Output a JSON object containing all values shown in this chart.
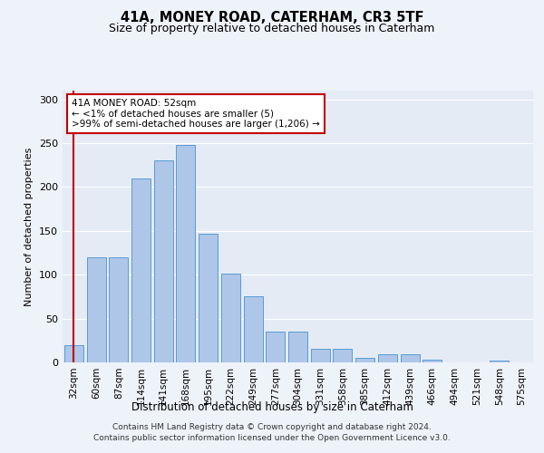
{
  "title1": "41A, MONEY ROAD, CATERHAM, CR3 5TF",
  "title2": "Size of property relative to detached houses in Caterham",
  "xlabel": "Distribution of detached houses by size in Caterham",
  "ylabel": "Number of detached properties",
  "bar_color": "#aec6e8",
  "bar_edge_color": "#5b9bd5",
  "highlight_color": "#c00000",
  "categories": [
    "32sqm",
    "60sqm",
    "87sqm",
    "114sqm",
    "141sqm",
    "168sqm",
    "195sqm",
    "222sqm",
    "249sqm",
    "277sqm",
    "304sqm",
    "331sqm",
    "358sqm",
    "385sqm",
    "412sqm",
    "439sqm",
    "466sqm",
    "494sqm",
    "521sqm",
    "548sqm",
    "575sqm"
  ],
  "values": [
    20,
    120,
    120,
    210,
    230,
    248,
    147,
    101,
    75,
    35,
    35,
    15,
    15,
    5,
    9,
    9,
    3,
    0,
    0,
    2,
    0
  ],
  "annotation_text": "41A MONEY ROAD: 52sqm\n← <1% of detached houses are smaller (5)\n>99% of semi-detached houses are larger (1,206) →",
  "ylim": [
    0,
    310
  ],
  "yticks": [
    0,
    50,
    100,
    150,
    200,
    250,
    300
  ],
  "footer1": "Contains HM Land Registry data © Crown copyright and database right 2024.",
  "footer2": "Contains public sector information licensed under the Open Government Licence v3.0.",
  "bg_color": "#eef2f9",
  "plot_bg_color": "#e4ebf5"
}
